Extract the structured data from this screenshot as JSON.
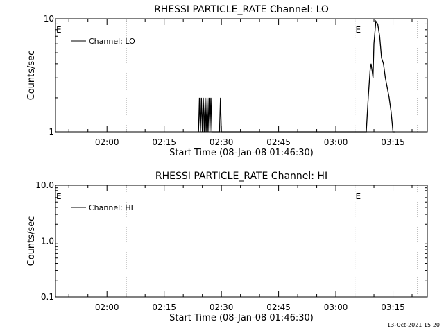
{
  "footer": {
    "timestamp": "13-Oct-2021 15:20"
  },
  "chart_data": [
    {
      "type": "line",
      "title": "RHESSI PARTICLE_RATE Channel: LO",
      "xlabel": "Start Time (08-Jan-08 01:46:30)",
      "ylabel": "Counts/sec",
      "yscale": "log",
      "xlim": [
        "01:46:30",
        "03:24:00"
      ],
      "ylim": [
        1,
        10
      ],
      "xticks": [
        "02:00",
        "02:15",
        "02:30",
        "02:45",
        "03:00",
        "03:15"
      ],
      "yticks": [
        "1",
        "10"
      ],
      "event_lines": [
        "02:05:00",
        "03:05:00",
        "03:21:30"
      ],
      "event_markers": [
        {
          "label": "E",
          "x": "01:46:30"
        },
        {
          "label": "E",
          "x": "03:05:00"
        }
      ],
      "legend": {
        "position": "top-left",
        "entries": [
          "Channel: LO"
        ]
      },
      "series": [
        {
          "name": "Channel: LO",
          "x": [
            "02:24:00",
            "02:24:15",
            "02:24:30",
            "02:24:45",
            "02:25:00",
            "02:25:15",
            "02:25:30",
            "02:25:45",
            "02:26:00",
            "02:26:15",
            "02:26:30",
            "02:26:45",
            "02:27:00",
            "02:27:15",
            "02:27:30",
            "02:27:45",
            "02:29:30",
            "02:29:45",
            "02:30:00",
            "02:30:15",
            "02:30:30",
            "03:08:00",
            "03:08:30",
            "03:09:00",
            "03:09:15",
            "03:09:30",
            "03:09:45",
            "03:10:00",
            "03:10:30",
            "03:11:00",
            "03:11:30",
            "03:12:00",
            "03:12:30",
            "03:13:00",
            "03:14:00",
            "03:14:30",
            "03:15:00",
            "03:15:30"
          ],
          "values": [
            1,
            2,
            1,
            2,
            1,
            2,
            1,
            2,
            1,
            2,
            1,
            2,
            1,
            2,
            1,
            1,
            1,
            2,
            1,
            1,
            1,
            1,
            2,
            3.5,
            4,
            3.5,
            3,
            6,
            9.5,
            9,
            7,
            4.5,
            4,
            3,
            2,
            1.5,
            1,
            1
          ]
        }
      ]
    },
    {
      "type": "line",
      "title": "RHESSI PARTICLE_RATE Channel: HI",
      "xlabel": "Start Time (08-Jan-08 01:46:30)",
      "ylabel": "Counts/sec",
      "yscale": "log",
      "xlim": [
        "01:46:30",
        "03:24:00"
      ],
      "ylim": [
        0.1,
        10
      ],
      "xticks": [
        "02:00",
        "02:15",
        "02:30",
        "02:45",
        "03:00",
        "03:15"
      ],
      "yticks": [
        "0.1",
        "1.0",
        "10.0"
      ],
      "event_lines": [
        "02:05:00",
        "03:05:00",
        "03:21:30"
      ],
      "event_markers": [
        {
          "label": "E",
          "x": "01:46:30"
        },
        {
          "label": "E",
          "x": "03:05:00"
        }
      ],
      "legend": {
        "position": "top-left",
        "entries": [
          "Channel: HI"
        ]
      },
      "series": [
        {
          "name": "Channel: HI",
          "x": [],
          "values": []
        }
      ]
    }
  ]
}
